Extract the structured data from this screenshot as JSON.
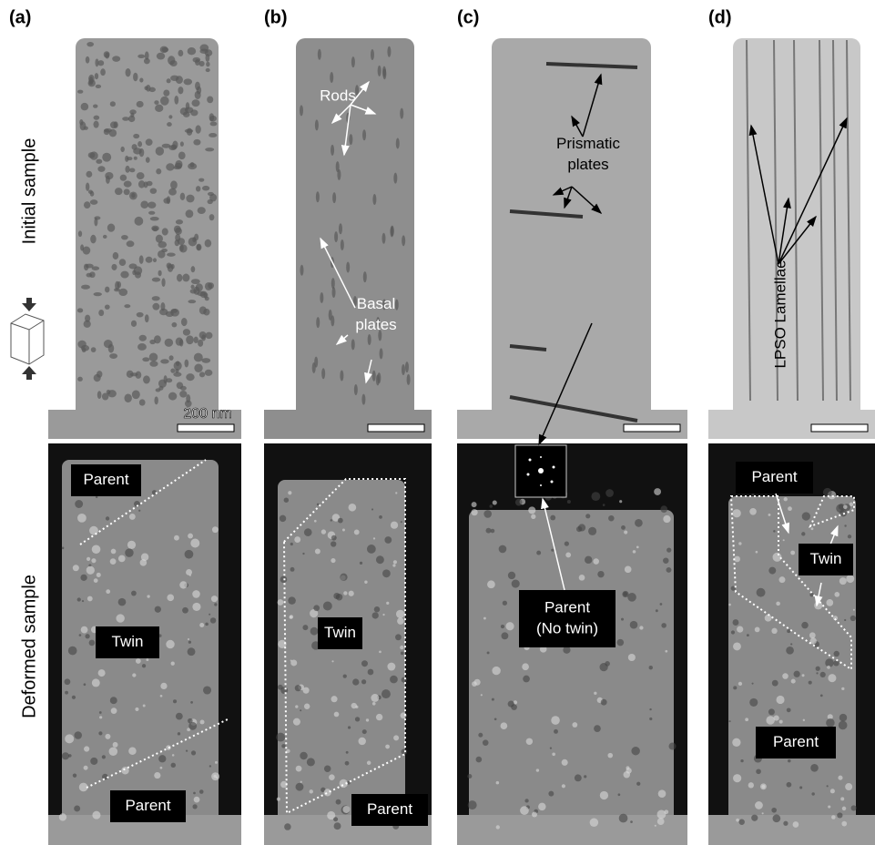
{
  "figure": {
    "row_labels": [
      "Initial sample",
      "Deformed sample"
    ],
    "scale_bar_label": "200 nm",
    "panels": [
      {
        "label": "(a)",
        "initial": [],
        "deformed": [
          {
            "lines": [
              "Parent"
            ]
          },
          {
            "lines": [
              "Twin"
            ]
          },
          {
            "lines": [
              "Parent"
            ]
          }
        ]
      },
      {
        "label": "(b)",
        "initial": [
          {
            "lines": [
              "Rods"
            ]
          },
          {
            "lines": [
              "Basal",
              "plates"
            ]
          }
        ],
        "deformed": [
          {
            "lines": [
              "Twin"
            ]
          },
          {
            "lines": [
              "Parent"
            ]
          }
        ]
      },
      {
        "label": "(c)",
        "initial": [
          {
            "lines": [
              "Prismatic",
              "plates"
            ]
          }
        ],
        "deformed": [
          {
            "lines": [
              "Parent",
              "(No twin)"
            ]
          }
        ]
      },
      {
        "label": "(d)",
        "initial": [
          {
            "lines": [
              "LPSO Lamellae"
            ]
          }
        ],
        "deformed": [
          {
            "lines": [
              "Parent"
            ]
          },
          {
            "lines": [
              "Twin"
            ]
          },
          {
            "lines": [
              "Parent"
            ]
          }
        ]
      }
    ]
  }
}
